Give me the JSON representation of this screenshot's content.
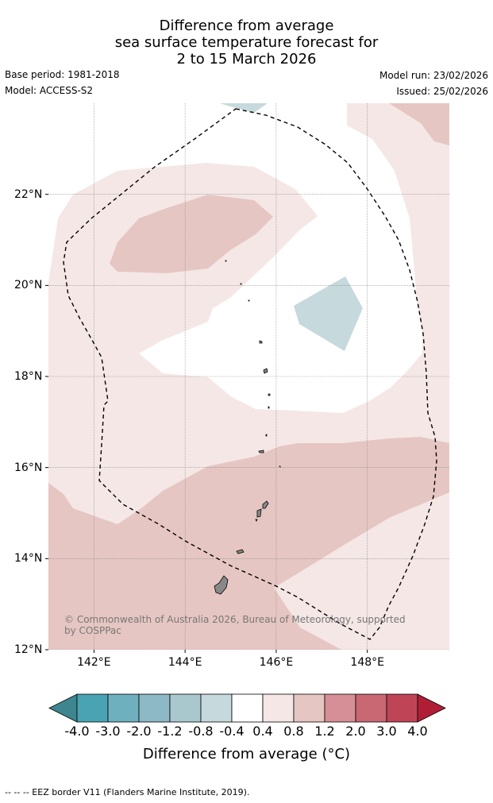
{
  "title": {
    "line1": "Difference from average",
    "line2": "sea surface temperature forecast for",
    "line3": "2 to 15 March 2026"
  },
  "meta": {
    "base_period": "Base period: 1981-2018",
    "model": "Model: ACCESS-S2",
    "model_run": "Model run: 23/02/2026",
    "issued": "Issued: 25/02/2026"
  },
  "map": {
    "lon_range": [
      141,
      149.8
    ],
    "lat_range": [
      12,
      24
    ],
    "lat_ticks": [
      {
        "value": 22,
        "label": "22°N"
      },
      {
        "value": 20,
        "label": "20°N"
      },
      {
        "value": 18,
        "label": "18°N"
      },
      {
        "value": 16,
        "label": "16°N"
      },
      {
        "value": 14,
        "label": "14°N"
      },
      {
        "value": 12,
        "label": "12°N"
      }
    ],
    "lon_ticks": [
      {
        "value": 142,
        "label": "142°E"
      },
      {
        "value": 144,
        "label": "144°E"
      },
      {
        "value": 146,
        "label": "146°E"
      },
      {
        "value": 148,
        "label": "148°E"
      }
    ],
    "colors": {
      "light_warm": "#f4e7e6",
      "warm": "#e6c6c2",
      "cool": "#c6d9dc",
      "land": "#888888",
      "grid": "#888888"
    },
    "credit": "© Commonwealth of Australia 2026, Bureau of Meteorology, supported by COSPPac"
  },
  "colorbar": {
    "labels": [
      "-4.0",
      "-3.0",
      "-2.0",
      "-1.2",
      "-0.8",
      "-0.4",
      "0.4",
      "0.8",
      "1.2",
      "2.0",
      "3.0",
      "4.0"
    ],
    "colors": [
      "#3d8690",
      "#4aa3b3",
      "#6fb0bf",
      "#8db9c6",
      "#a9c8ce",
      "#c6d9dc",
      "#ffffff",
      "#f4e7e6",
      "#e6c6c2",
      "#d68f96",
      "#c96773",
      "#bf4556",
      "#b01e36"
    ],
    "title": "Difference from average (°C)"
  },
  "footer": "--  --  -- EEZ border V11 (Flanders Marine Institute, 2019)."
}
